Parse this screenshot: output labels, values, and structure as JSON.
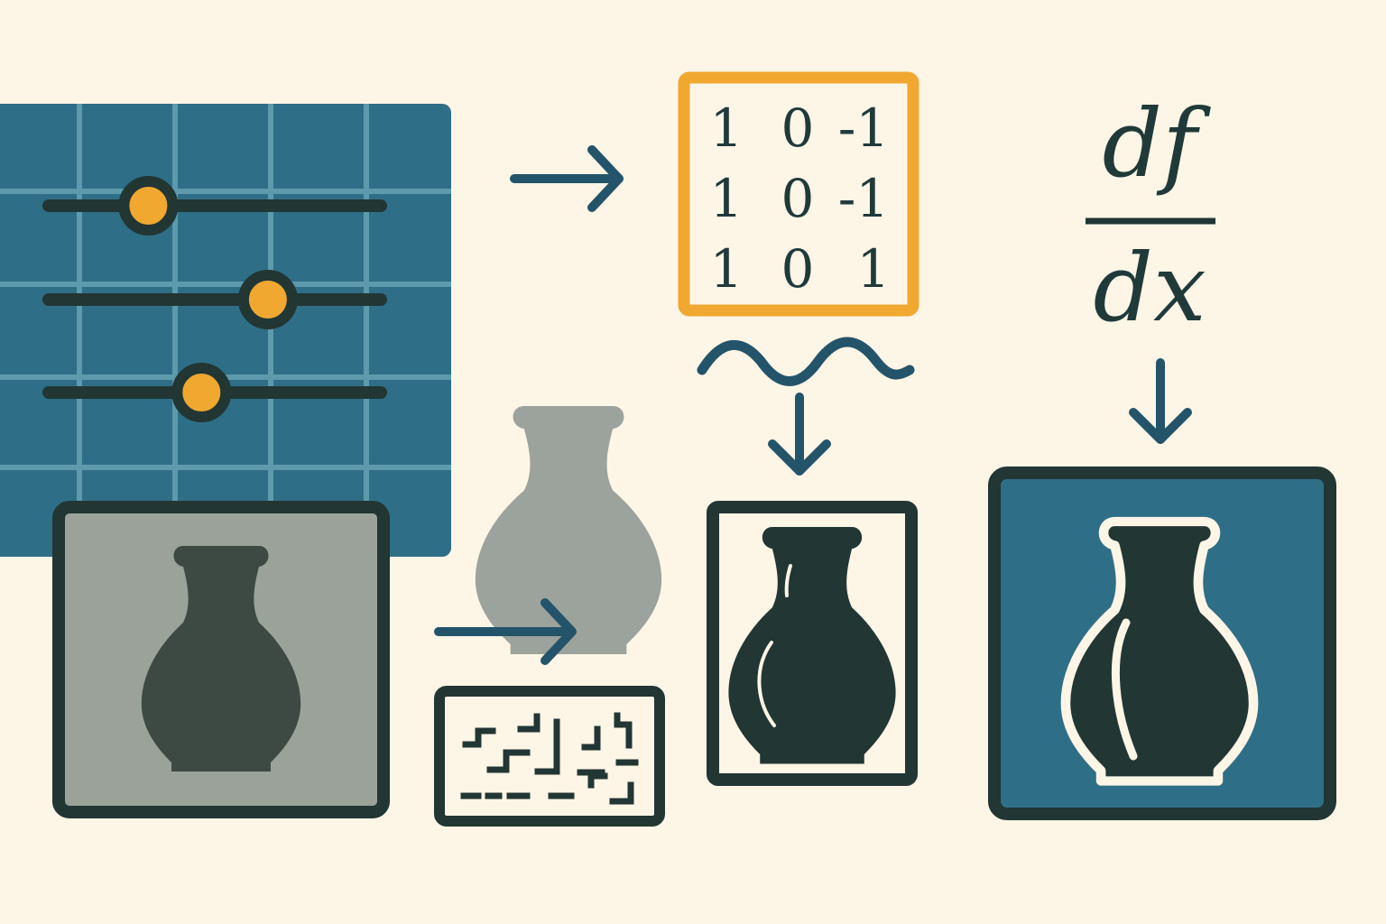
{
  "colors": {
    "background": "#fdf5e6",
    "panel_blue": "#2f6e87",
    "grid_line": "#5d9aab",
    "dark": "#223634",
    "accent_orange": "#f0a830",
    "gray_frame_fill": "#9aa29a",
    "light_gray_vase": "#9ca39c",
    "outline_cream": "#fdf5e6"
  },
  "sliders": {
    "values": [
      0.3,
      0.66,
      0.46
    ]
  },
  "kernel": {
    "rows": [
      [
        "1",
        "0",
        "-1"
      ],
      [
        "1",
        "0",
        "-1"
      ],
      [
        "1",
        "0",
        "1"
      ]
    ]
  },
  "derivative": {
    "numerator": "df",
    "denominator": "dx"
  },
  "icons": {
    "sliders_panel": "grid-sliders-icon",
    "arrow": "arrow-right-icon",
    "arrow_down": "arrow-down-icon",
    "wave": "wave-icon",
    "noise": "noise-pattern-icon",
    "vase": "vase-icon"
  }
}
